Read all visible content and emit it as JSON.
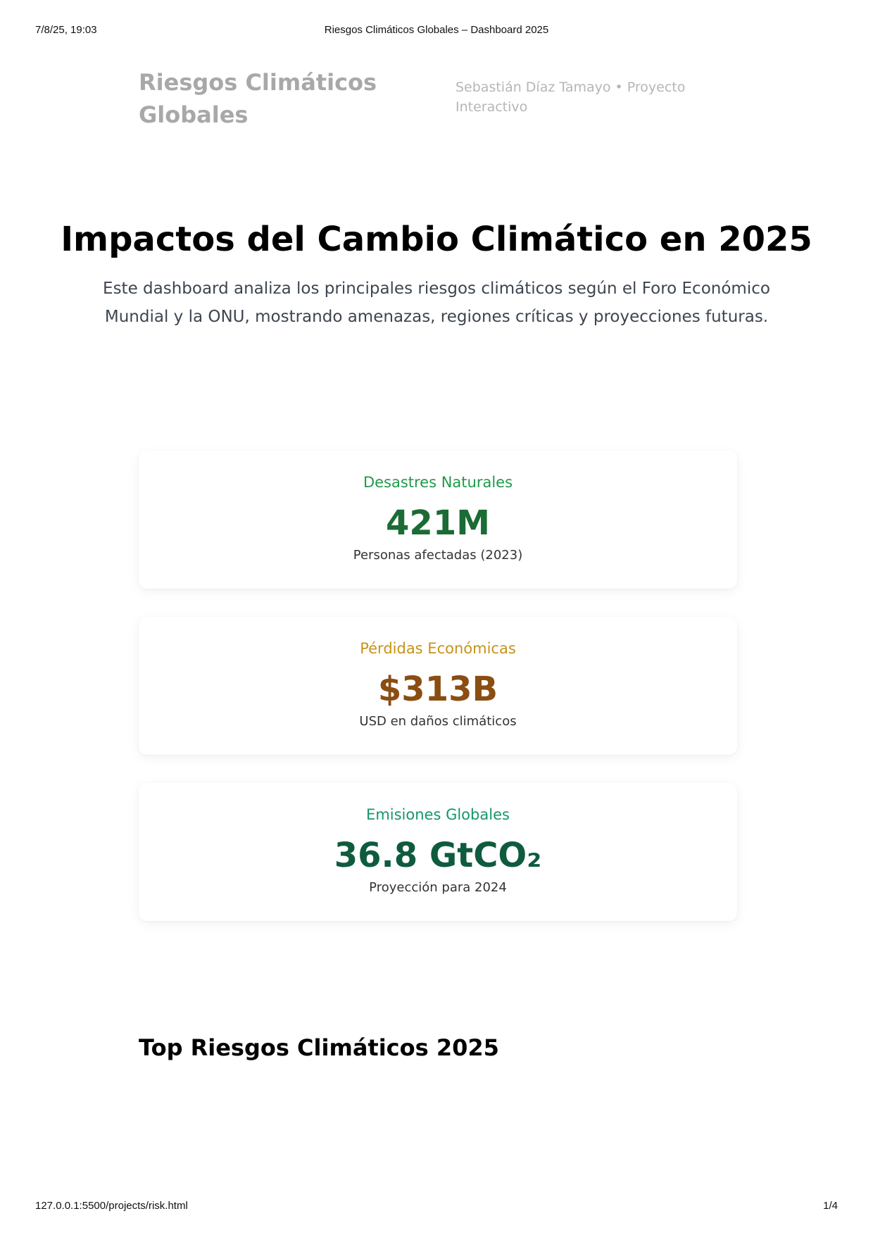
{
  "print_header": {
    "datetime": "7/8/25, 19:03",
    "doc_title": "Riesgos Climáticos Globales – Dashboard 2025"
  },
  "print_footer": {
    "url": "127.0.0.1:5500/projects/risk.html",
    "page": "1/4"
  },
  "header": {
    "brand": "Riesgos Climáticos Globales",
    "author": "Sebastián Díaz Tamayo • Proyecto Interactivo"
  },
  "hero": {
    "title": "Impactos del Cambio Climático en 2025",
    "description": "Este dashboard analiza los principales riesgos climáticos según el Foro Económico Mundial y la ONU, mostrando amenazas, regiones críticas y proyecciones futuras."
  },
  "stats": [
    {
      "title": "Desastres Naturales",
      "value": "421M",
      "description": "Personas afectadas (2023)",
      "title_color": "#1f9a4a",
      "value_color": "#1b6b35"
    },
    {
      "title": "Pérdidas Económicas",
      "value": "$313B",
      "description": "USD en daños climáticos",
      "title_color": "#c79318",
      "value_color": "#8a4d12"
    },
    {
      "title": "Emisiones Globales",
      "value": "36.8 GtCO₂",
      "description": "Proyección para 2024",
      "title_color": "#17966a",
      "value_color": "#0f5b3e"
    }
  ],
  "top_risks": {
    "title": "Top Riesgos Climáticos 2025"
  }
}
